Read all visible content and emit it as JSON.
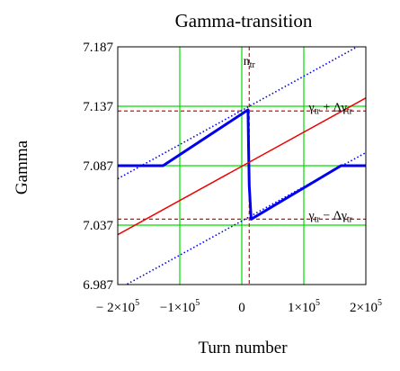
{
  "chart_data": {
    "type": "line",
    "title": "Gamma-transition",
    "xlabel": "Turn number",
    "ylabel": "Gamma",
    "xlim": [
      -200000,
      200000
    ],
    "ylim": [
      6.987,
      7.187
    ],
    "x_ticks": [
      {
        "value": -200000,
        "label": "− 2×10",
        "exp": "5"
      },
      {
        "value": -100000,
        "label": "−1×10",
        "exp": "5"
      },
      {
        "value": 0,
        "label": "0",
        "exp": ""
      },
      {
        "value": 100000,
        "label": "1×10",
        "exp": "5"
      },
      {
        "value": 200000,
        "label": "2×10",
        "exp": "5"
      }
    ],
    "y_ticks": [
      {
        "value": 6.987,
        "label": "6.987"
      },
      {
        "value": 7.037,
        "label": "7.037"
      },
      {
        "value": 7.087,
        "label": "7.087"
      },
      {
        "value": 7.137,
        "label": "7.137"
      },
      {
        "value": 7.187,
        "label": "7.187"
      }
    ],
    "grid": true,
    "colors": {
      "grid": "#00dd00",
      "frame": "#000000",
      "gamma": "#0000ee",
      "transition": "#ee0000",
      "markers": "#ee0000"
    },
    "series": [
      {
        "style": "solid-thick",
        "color": "#0000ee",
        "x": [
          -200000,
          -127000,
          10000,
          11000,
          12000,
          15000,
          160000,
          200000
        ],
        "y": [
          7.087,
          7.087,
          7.134,
          7.1,
          7.07,
          7.042,
          7.087,
          7.087
        ]
      },
      {
        "style": "solid",
        "color": "#ee0000",
        "x": [
          -200000,
          200000
        ],
        "y": [
          7.029,
          7.144
        ]
      },
      {
        "style": "dotted",
        "color": "#0000ee",
        "x": [
          -200000,
          200000
        ],
        "y": [
          7.076,
          7.191
        ]
      },
      {
        "style": "dotted",
        "color": "#0000ee",
        "x": [
          -200000,
          200000
        ],
        "y": [
          6.983,
          7.098
        ]
      }
    ],
    "reference_lines": [
      {
        "orientation": "horizontal",
        "value": 7.133,
        "color": "#ee0000",
        "style": "dashed"
      },
      {
        "orientation": "horizontal",
        "value": 7.042,
        "color": "#ee0000",
        "style": "dashed"
      },
      {
        "orientation": "vertical",
        "value": 12000,
        "color": "#ee0000",
        "style": "dashed"
      }
    ],
    "annotations": [
      {
        "text": "n",
        "sub": "tr",
        "x": 12000,
        "y": 7.172,
        "anchor": "middle"
      },
      {
        "text": "γ",
        "sub": "tr",
        "tail": " + Δγ",
        "sub2": "tr",
        "x": 108000,
        "y": 7.133,
        "anchor": "start"
      },
      {
        "text": "γ",
        "sub": "tr",
        "tail": " − Δγ",
        "sub2": "tr",
        "x": 108000,
        "y": 7.042,
        "anchor": "start"
      }
    ]
  }
}
